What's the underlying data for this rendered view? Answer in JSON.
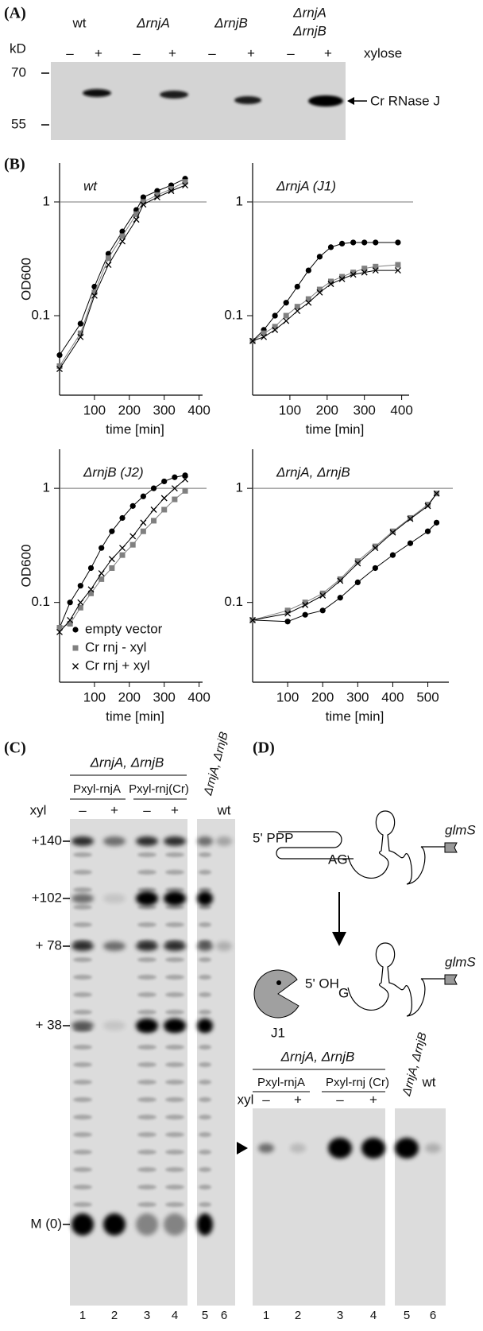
{
  "panel_a": {
    "label": "(A)",
    "unit": "kD",
    "strains": [
      "wt",
      "ΔrnjA",
      "ΔrnjB"
    ],
    "strain_double": [
      "ΔrnjA",
      "ΔrnjB"
    ],
    "minus": "–",
    "plus": "+",
    "xylose": "xylose",
    "markers": [
      "70",
      "55"
    ],
    "band_label": "Cr RNase J"
  },
  "panel_b": {
    "label": "(B)"
  },
  "chart_data": [
    {
      "type": "line",
      "title": "wt",
      "ylabel": "OD600",
      "xlabel": "time [min]",
      "log_y": true,
      "hline": 1,
      "x": [
        0,
        60,
        100,
        140,
        180,
        220,
        240,
        280,
        320,
        360
      ],
      "series": [
        {
          "color": "#000000",
          "marker": "circle",
          "values": [
            0.045,
            0.085,
            0.18,
            0.35,
            0.55,
            0.85,
            1.1,
            1.25,
            1.4,
            1.6
          ]
        },
        {
          "color": "#808080",
          "marker": "square",
          "values": [
            0.036,
            0.07,
            0.16,
            0.32,
            0.5,
            0.78,
            1.0,
            1.15,
            1.3,
            1.5
          ]
        },
        {
          "color": "#000000",
          "marker": "cross",
          "values": [
            0.034,
            0.065,
            0.15,
            0.28,
            0.45,
            0.7,
            0.95,
            1.1,
            1.25,
            1.4
          ]
        }
      ],
      "xlim": [
        0,
        410
      ],
      "xticks": [
        100,
        200,
        300,
        400
      ],
      "ylim": [
        0.02,
        2.2
      ],
      "yticks": [
        0.1,
        1
      ]
    },
    {
      "type": "line",
      "title": "ΔrnjA (J1)",
      "xlabel": "time [min]",
      "log_y": true,
      "hline": 1,
      "x": [
        0,
        30,
        60,
        90,
        120,
        150,
        180,
        210,
        240,
        270,
        300,
        330,
        390
      ],
      "series": [
        {
          "color": "#000000",
          "marker": "circle",
          "values": [
            0.06,
            0.075,
            0.1,
            0.13,
            0.18,
            0.25,
            0.33,
            0.4,
            0.43,
            0.44,
            0.44,
            0.44,
            0.44
          ]
        },
        {
          "color": "#808080",
          "marker": "square",
          "values": [
            0.06,
            0.07,
            0.08,
            0.1,
            0.12,
            0.14,
            0.17,
            0.2,
            0.22,
            0.24,
            0.26,
            0.27,
            0.28
          ]
        },
        {
          "color": "#000000",
          "marker": "cross",
          "values": [
            0.06,
            0.065,
            0.075,
            0.09,
            0.11,
            0.13,
            0.16,
            0.19,
            0.21,
            0.23,
            0.24,
            0.25,
            0.25
          ]
        }
      ],
      "xlim": [
        0,
        420
      ],
      "xticks": [
        100,
        200,
        300,
        400
      ],
      "ylim": [
        0.02,
        2.2
      ],
      "yticks": [
        0.1,
        1
      ]
    },
    {
      "type": "line",
      "title": "ΔrnjB (J2)",
      "ylabel": "OD600",
      "xlabel": "time [min]",
      "log_y": true,
      "hline": 1,
      "legend": "lower right",
      "x": [
        0,
        30,
        60,
        90,
        120,
        150,
        180,
        210,
        240,
        270,
        300,
        330,
        360
      ],
      "series": [
        {
          "name": "empty vector",
          "color": "#000000",
          "marker": "circle",
          "values": [
            0.06,
            0.1,
            0.14,
            0.2,
            0.3,
            0.42,
            0.55,
            0.7,
            0.85,
            1.0,
            1.15,
            1.25,
            1.3
          ]
        },
        {
          "name": "Cr rnj - xyl",
          "color": "#808080",
          "marker": "square",
          "values": [
            0.06,
            0.065,
            0.09,
            0.12,
            0.16,
            0.2,
            0.26,
            0.32,
            0.42,
            0.52,
            0.65,
            0.8,
            0.95
          ]
        },
        {
          "name": "Cr rnj + xyl",
          "color": "#000000",
          "marker": "cross",
          "values": [
            0.055,
            0.07,
            0.1,
            0.13,
            0.18,
            0.24,
            0.3,
            0.38,
            0.5,
            0.65,
            0.82,
            1.0,
            1.2
          ]
        }
      ],
      "xlim": [
        0,
        410
      ],
      "xticks": [
        100,
        200,
        300,
        400
      ],
      "ylim": [
        0.02,
        2.2
      ],
      "yticks": [
        0.1,
        1
      ]
    },
    {
      "type": "line",
      "title": "ΔrnjA, ΔrnjB",
      "xlabel": "time [min]",
      "log_y": true,
      "hline": 1,
      "x": [
        0,
        100,
        150,
        200,
        250,
        300,
        350,
        400,
        450,
        500,
        525
      ],
      "series": [
        {
          "color": "#000000",
          "marker": "circle",
          "values": [
            0.07,
            0.068,
            0.078,
            0.085,
            0.11,
            0.15,
            0.2,
            0.26,
            0.33,
            0.42,
            0.5
          ]
        },
        {
          "color": "#808080",
          "marker": "square",
          "values": [
            0.07,
            0.085,
            0.1,
            0.12,
            0.16,
            0.23,
            0.31,
            0.42,
            0.55,
            0.72,
            0.9
          ]
        },
        {
          "color": "#000000",
          "marker": "cross",
          "values": [
            0.07,
            0.08,
            0.095,
            0.115,
            0.155,
            0.22,
            0.3,
            0.41,
            0.54,
            0.7,
            0.9
          ]
        }
      ],
      "xlim": [
        0,
        560
      ],
      "xticks": [
        100,
        200,
        300,
        400,
        500
      ],
      "ylim": [
        0.02,
        2.2
      ],
      "yticks": [
        0.1,
        1
      ]
    }
  ],
  "panel_c": {
    "label": "(C)",
    "strain": "ΔrnjA, ΔrnjB",
    "constructs": [
      "Pxyl-rnjA",
      "Pxyl-rnj(Cr)"
    ],
    "control_strain": "ΔrnjA, ΔrnjB",
    "control_wt": "wt",
    "xyl": "xyl",
    "minus": "–",
    "plus": "+",
    "sizes": [
      "+140",
      "+102",
      "+ 78",
      "+ 38",
      "M (0)"
    ],
    "lanes": [
      "1",
      "2",
      "3",
      "4",
      "5",
      "6"
    ]
  },
  "panel_d": {
    "label": "(D)",
    "diagram": {
      "top": {
        "five_prime": "5' PPP",
        "junction": "AG",
        "gene": "glmS"
      },
      "bottom": {
        "five_prime": "5' OH",
        "junction": "G",
        "gene": "glmS",
        "enzyme": "J1"
      }
    },
    "gel": {
      "strain": "ΔrnjA, ΔrnjB",
      "constructs": [
        "Pxyl-rnjA",
        "Pxyl-rnj (Cr)"
      ],
      "control_strain": "ΔrnjA, ΔrnjB",
      "control_wt": "wt",
      "xyl": "xyl",
      "minus": "–",
      "plus": "+",
      "lanes": [
        "1",
        "2",
        "3",
        "4",
        "5",
        "6"
      ]
    }
  }
}
